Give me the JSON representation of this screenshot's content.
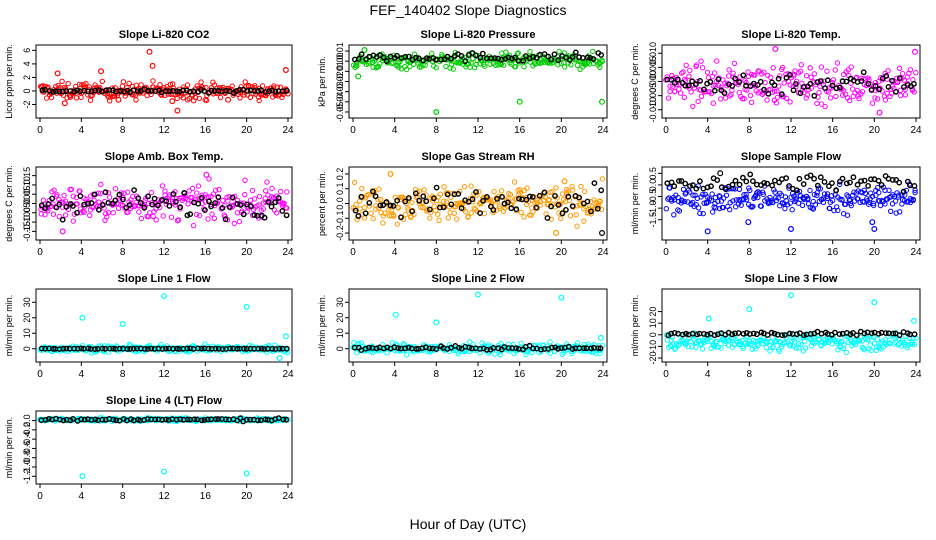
{
  "figure": {
    "title": "FEF_140402  Slope Diagnostics",
    "xlabel": "Hour of Day (UTC)"
  },
  "colors": {
    "dominant_marker": "#000000",
    "axis": "#000000"
  },
  "chart_data": [
    {
      "type": "scatter",
      "title": "Slope Li-820 CO2",
      "ylabel": "Licor ppm per min.",
      "xlim": [
        0,
        24
      ],
      "ylim": [
        -3.4,
        6.2
      ],
      "yticks": [
        -2,
        0,
        2,
        4,
        6
      ],
      "xticks": [
        0,
        4,
        8,
        12,
        16,
        20,
        24
      ],
      "color": "#ff0000",
      "series": [
        {
          "marker": "colored",
          "center": 0,
          "spread": 0.9,
          "outliers": [
            [
              1.7,
              2.6
            ],
            [
              2.4,
              -1.8
            ],
            [
              5.9,
              2.9
            ],
            [
              7.6,
              -1.3
            ],
            [
              10.6,
              5.8
            ],
            [
              10.9,
              3.7
            ],
            [
              12.8,
              -1.5
            ],
            [
              13.3,
              -2.9
            ],
            [
              18.2,
              -1.3
            ],
            [
              23.8,
              3.1
            ]
          ]
        },
        {
          "marker": "black",
          "center": 0,
          "spread": 0.15,
          "outliers": []
        }
      ]
    },
    {
      "type": "scatter",
      "title": "Slope Li-820 Pressure",
      "ylabel": "kPa per min.",
      "xlim": [
        0,
        24
      ],
      "ylim": [
        -0.052,
        0.012
      ],
      "yticks": [
        -0.05,
        -0.04,
        -0.03,
        -0.02,
        -0.01,
        0.0,
        0.01
      ],
      "ytick_labels": [
        "-0.05",
        "-0.04",
        "-0.03",
        "-0.02",
        "-0.01",
        "0.00",
        "0.01"
      ],
      "xticks": [
        0,
        4,
        8,
        12,
        16,
        20,
        24
      ],
      "color": "#00cc00",
      "series": [
        {
          "marker": "colored",
          "center": 0.0,
          "spread": 0.0055,
          "outliers": [
            [
              0.5,
              -0.015
            ],
            [
              8,
              -0.05
            ],
            [
              16,
              -0.04
            ],
            [
              23.9,
              -0.04
            ],
            [
              1.1,
              0.011
            ]
          ]
        },
        {
          "marker": "black",
          "center": 0.004,
          "spread": 0.003,
          "outliers": []
        }
      ]
    },
    {
      "type": "scatter",
      "title": "Slope Li-820 Temp.",
      "ylabel": "degrees C per min.",
      "xlim": [
        0,
        24
      ],
      "ylim": [
        -0.0115,
        0.0115
      ],
      "yticks": [
        -0.01,
        -0.005,
        0.0,
        0.005,
        0.01
      ],
      "ytick_labels": [
        "-0.010",
        "-0.005",
        "0.000",
        "0.005",
        "0.010"
      ],
      "xticks": [
        0,
        4,
        8,
        12,
        16,
        20,
        24
      ],
      "color": "#ff00ff",
      "series": [
        {
          "marker": "colored",
          "center": -0.001,
          "spread": 0.0048,
          "outliers": [
            [
              10.5,
              0.0115
            ],
            [
              23.9,
              0.0105
            ],
            [
              20.5,
              -0.011
            ]
          ]
        },
        {
          "marker": "black",
          "center": -0.0008,
          "spread": 0.003,
          "outliers": []
        }
      ]
    },
    {
      "type": "scatter",
      "title": "Slope Amb. Box Temp.",
      "ylabel": "degrees C per min.",
      "xlim": [
        0,
        24
      ],
      "ylim": [
        -0.175,
        0.175
      ],
      "yticks": [
        -0.15,
        -0.1,
        -0.05,
        0.0,
        0.05,
        0.1,
        0.15
      ],
      "ytick_labels": [
        "-0.15",
        "-0.10",
        "-0.05",
        "0.00",
        "0.05",
        "0.10",
        "0.15"
      ],
      "xticks": [
        0,
        4,
        8,
        12,
        16,
        20,
        24
      ],
      "color": "#ff00ff",
      "series": [
        {
          "marker": "colored",
          "center": 0.0,
          "spread": 0.065,
          "outliers": [
            [
              2.2,
              -0.15
            ],
            [
              16.1,
              0.155
            ]
          ]
        },
        {
          "marker": "black",
          "center": 0.0,
          "spread": 0.05,
          "outliers": []
        }
      ]
    },
    {
      "type": "scatter",
      "title": "Slope Gas Stream RH",
      "ylabel": "percent per min.",
      "xlim": [
        0,
        24
      ],
      "ylim": [
        -0.22,
        0.22
      ],
      "yticks": [
        -0.2,
        -0.1,
        0.0,
        0.1,
        0.2
      ],
      "ytick_labels": [
        "-0.2",
        "-0.1",
        "0.0",
        "0.1",
        "0.2"
      ],
      "xticks": [
        0,
        4,
        8,
        12,
        16,
        20,
        24
      ],
      "color": "#ff9900",
      "series": [
        {
          "marker": "colored",
          "center": 0.0,
          "spread": 0.085,
          "outliers": [
            [
              3.6,
              0.2
            ],
            [
              19.5,
              -0.2
            ],
            [
              20.3,
              0.15
            ]
          ]
        },
        {
          "marker": "black",
          "center": 0.0,
          "spread": 0.07,
          "outliers": [
            [
              23.9,
              -0.2
            ]
          ]
        }
      ]
    },
    {
      "type": "scatter",
      "title": "Slope Sample Flow",
      "ylabel": "ml/min per min.",
      "xlim": [
        0,
        24
      ],
      "ylim": [
        -2.2,
        0.6
      ],
      "yticks": [
        -1.5,
        -1.0,
        -0.5,
        0.0,
        0.5
      ],
      "ytick_labels": [
        "-1.5",
        "-1.0",
        "-0.5",
        "0.0",
        "0.5"
      ],
      "xticks": [
        0,
        4,
        8,
        12,
        16,
        20,
        24
      ],
      "color": "#0000ff",
      "series": [
        {
          "marker": "colored",
          "center": -0.6,
          "spread": 0.4,
          "outliers": [
            [
              4.0,
              -2.0
            ],
            [
              12.0,
              -1.9
            ],
            [
              20.0,
              -1.9
            ],
            [
              7.9,
              -1.6
            ],
            [
              19.8,
              -1.6
            ]
          ]
        },
        {
          "marker": "black",
          "center": 0.1,
          "spread": 0.25,
          "outliers": [
            [
              5.2,
              0.5
            ]
          ]
        }
      ]
    },
    {
      "type": "scatter",
      "title": "Slope Line 1 Flow",
      "ylabel": "ml/min per min.",
      "xlim": [
        0,
        24
      ],
      "ylim": [
        -6,
        36
      ],
      "yticks": [
        0,
        10,
        20,
        30
      ],
      "xticks": [
        0,
        4,
        8,
        12,
        16,
        20,
        24
      ],
      "color": "#00ffff",
      "series": [
        {
          "marker": "colored",
          "center": 0,
          "spread": 1.5,
          "outliers": [
            [
              4.1,
              20
            ],
            [
              8.0,
              16
            ],
            [
              12.0,
              34
            ],
            [
              20.0,
              27
            ],
            [
              23.8,
              8
            ],
            [
              23.2,
              -6
            ]
          ]
        },
        {
          "marker": "black",
          "center": 0,
          "spread": 0.2,
          "outliers": []
        }
      ]
    },
    {
      "type": "scatter",
      "title": "Slope Line 2 Flow",
      "ylabel": "ml/min per min.",
      "xlim": [
        0,
        24
      ],
      "ylim": [
        -6,
        36
      ],
      "yticks": [
        0,
        10,
        20,
        30
      ],
      "xticks": [
        0,
        4,
        8,
        12,
        16,
        20,
        24
      ],
      "color": "#00ffff",
      "series": [
        {
          "marker": "colored",
          "center": 0,
          "spread": 2.5,
          "outliers": [
            [
              4.1,
              22
            ],
            [
              8.0,
              17
            ],
            [
              12.0,
              35
            ],
            [
              20.0,
              33
            ],
            [
              23.8,
              7
            ]
          ]
        },
        {
          "marker": "black",
          "center": 0.3,
          "spread": 0.8,
          "outliers": []
        }
      ]
    },
    {
      "type": "scatter",
      "title": "Slope Line 3 Flow",
      "ylabel": "ml/min per min.",
      "xlim": [
        0,
        24
      ],
      "ylim": [
        -20,
        36
      ],
      "yticks": [
        -20,
        -10,
        0,
        10,
        20
      ],
      "xticks": [
        0,
        4,
        8,
        12,
        16,
        20,
        24
      ],
      "color": "#00ffff",
      "series": [
        {
          "marker": "colored",
          "center": -6,
          "spread": 5,
          "outliers": [
            [
              4.1,
              14
            ],
            [
              8.0,
              22
            ],
            [
              12.0,
              34
            ],
            [
              20.0,
              28
            ],
            [
              23.8,
              12
            ]
          ]
        },
        {
          "marker": "black",
          "center": 1,
          "spread": 1.2,
          "outliers": []
        }
      ]
    },
    {
      "type": "scatter",
      "title": "Slope Line 4 (LT) Flow",
      "ylabel": "ml/min per min.",
      "xlim": [
        0,
        24
      ],
      "ylim": [
        -1.28,
        0.12
      ],
      "yticks": [
        -1.2,
        -1.0,
        -0.8,
        -0.6,
        -0.4,
        -0.2,
        0.0
      ],
      "ytick_labels": [
        "-1.2",
        "-1.0",
        "-0.8",
        "-0.6",
        "-0.4",
        "-0.2",
        "0.0"
      ],
      "xticks": [
        0,
        4,
        8,
        12,
        16,
        20,
        24
      ],
      "color": "#00ffff",
      "series": [
        {
          "marker": "colored",
          "center": 0.02,
          "spread": 0.025,
          "outliers": [
            [
              4.1,
              -1.2
            ],
            [
              12.0,
              -1.1
            ],
            [
              20.0,
              -1.14
            ]
          ]
        },
        {
          "marker": "black",
          "center": 0.02,
          "spread": 0.02,
          "outliers": []
        }
      ]
    }
  ]
}
